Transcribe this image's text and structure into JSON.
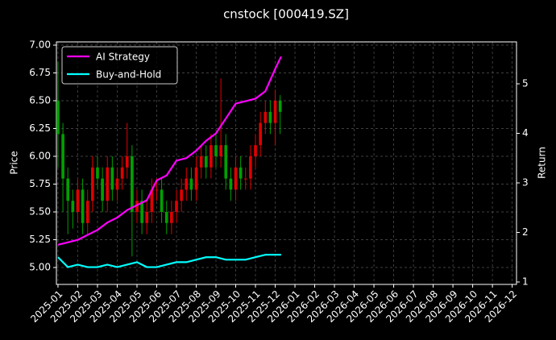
{
  "chart_data": {
    "type": "candlestick",
    "title": "cnstock [000419.SZ]",
    "ylabel": "Price",
    "y2label": "Return",
    "xlim": [
      -0.08,
      23.22
    ],
    "ylim": [
      4.848,
      7.029
    ],
    "y2lim": [
      0.951,
      5.846
    ],
    "xticks": [
      {
        "value": 0,
        "label": "2025-01"
      },
      {
        "value": 1,
        "label": "2025-02"
      },
      {
        "value": 2,
        "label": "2025-03"
      },
      {
        "value": 3,
        "label": "2025-04"
      },
      {
        "value": 4,
        "label": "2025-05"
      },
      {
        "value": 5,
        "label": "2025-06"
      },
      {
        "value": 6,
        "label": "2025-07"
      },
      {
        "value": 7,
        "label": "2025-08"
      },
      {
        "value": 8,
        "label": "2025-09"
      },
      {
        "value": 9,
        "label": "2025-10"
      },
      {
        "value": 10,
        "label": "2025-11"
      },
      {
        "value": 11,
        "label": "2025-12"
      },
      {
        "value": 12,
        "label": "2026-01"
      },
      {
        "value": 13,
        "label": "2026-02"
      },
      {
        "value": 14,
        "label": "2026-03"
      },
      {
        "value": 15,
        "label": "2026-04"
      },
      {
        "value": 16,
        "label": "2026-05"
      },
      {
        "value": 17,
        "label": "2026-06"
      },
      {
        "value": 18,
        "label": "2026-07"
      },
      {
        "value": 19,
        "label": "2026-08"
      },
      {
        "value": 20,
        "label": "2026-09"
      },
      {
        "value": 21,
        "label": "2026-10"
      },
      {
        "value": 22,
        "label": "2026-11"
      },
      {
        "value": 23,
        "label": "2026-12"
      }
    ],
    "yticks": [
      {
        "value": 5,
        "label": "5.00"
      },
      {
        "value": 5.25,
        "label": "5.25"
      },
      {
        "value": 5.5,
        "label": "5.50"
      },
      {
        "value": 5.75,
        "label": "5.75"
      },
      {
        "value": 6,
        "label": "6.00"
      },
      {
        "value": 6.25,
        "label": "6.25"
      },
      {
        "value": 6.5,
        "label": "6.50"
      },
      {
        "value": 6.75,
        "label": "6.75"
      },
      {
        "value": 7,
        "label": "7.00"
      }
    ],
    "y2ticks": [
      1,
      2,
      3,
      4,
      5
    ],
    "grid": true,
    "legend": "upper left",
    "candles": {
      "up_color": "#e00000",
      "down_color": "#00a000",
      "x": [
        0,
        0.25,
        0.5,
        0.75,
        1,
        1.25,
        1.5,
        1.75,
        2,
        2.25,
        2.5,
        2.75,
        3,
        3.25,
        3.5,
        3.75,
        4,
        4.25,
        4.5,
        4.75,
        5,
        5.25,
        5.5,
        5.75,
        6,
        6.25,
        6.5,
        6.75,
        7,
        7.25,
        7.5,
        7.75,
        8,
        8.25,
        8.5,
        8.75,
        9,
        9.25,
        9.5,
        9.75,
        10,
        10.25,
        10.5,
        10.75,
        11,
        11.25
      ],
      "open": [
        6.5,
        6.2,
        5.8,
        5.6,
        5.5,
        5.7,
        5.4,
        5.6,
        5.9,
        5.8,
        5.6,
        5.9,
        5.7,
        5.8,
        5.9,
        6.0,
        5.5,
        5.6,
        5.4,
        5.5,
        5.7,
        5.7,
        5.5,
        5.4,
        5.5,
        5.6,
        5.7,
        5.8,
        5.7,
        5.9,
        6.0,
        5.9,
        6.1,
        6.0,
        6.1,
        5.8,
        5.7,
        5.9,
        5.8,
        5.8,
        6.0,
        6.1,
        6.3,
        6.4,
        6.3,
        6.5
      ],
      "high": [
        6.85,
        6.3,
        5.9,
        5.7,
        5.8,
        5.8,
        5.7,
        6.0,
        6.0,
        5.9,
        6.0,
        6.0,
        5.9,
        6.0,
        6.3,
        6.1,
        5.7,
        5.7,
        5.6,
        5.8,
        5.8,
        5.8,
        5.6,
        5.6,
        5.7,
        5.8,
        5.9,
        5.9,
        6.0,
        6.1,
        6.1,
        6.2,
        6.2,
        6.7,
        6.2,
        5.9,
        6.0,
        6.0,
        5.9,
        6.1,
        6.2,
        6.4,
        6.5,
        6.5,
        6.6,
        6.55
      ],
      "low": [
        5.9,
        5.5,
        5.3,
        5.35,
        5.4,
        5.3,
        5.3,
        5.5,
        5.7,
        5.5,
        5.5,
        5.6,
        5.6,
        5.7,
        5.8,
        5.1,
        5.4,
        5.3,
        5.3,
        5.4,
        5.6,
        5.4,
        5.3,
        5.3,
        5.4,
        5.5,
        5.6,
        5.6,
        5.6,
        5.8,
        5.8,
        5.8,
        5.9,
        5.9,
        5.7,
        5.6,
        5.6,
        5.7,
        5.7,
        5.7,
        5.9,
        6.0,
        6.2,
        6.2,
        6.1,
        6.2
      ],
      "close": [
        6.2,
        5.8,
        5.6,
        5.5,
        5.7,
        5.4,
        5.6,
        5.9,
        5.8,
        5.6,
        5.9,
        5.7,
        5.8,
        5.9,
        6.0,
        5.5,
        5.6,
        5.4,
        5.5,
        5.7,
        5.7,
        5.5,
        5.4,
        5.5,
        5.6,
        5.7,
        5.8,
        5.7,
        5.9,
        6.0,
        5.9,
        6.1,
        6.0,
        6.1,
        5.8,
        5.7,
        5.9,
        5.8,
        5.8,
        6.0,
        6.1,
        6.3,
        6.4,
        6.3,
        6.5,
        6.4
      ]
    },
    "series": [
      {
        "name": "AI Strategy",
        "color": "#ff00ff",
        "axis": "y2",
        "x": [
          0,
          0.5,
          1,
          1.5,
          2,
          2.5,
          3,
          3.5,
          4,
          4.5,
          5,
          5.5,
          6,
          6.5,
          7,
          7.5,
          8,
          8.5,
          9,
          9.5,
          10,
          10.5,
          11,
          11.3
        ],
        "values": [
          1.75,
          1.8,
          1.85,
          1.95,
          2.05,
          2.2,
          2.3,
          2.45,
          2.55,
          2.65,
          3.05,
          3.15,
          3.45,
          3.5,
          3.65,
          3.85,
          4.0,
          4.3,
          4.6,
          4.65,
          4.7,
          4.85,
          5.3,
          5.55
        ]
      },
      {
        "name": "Buy-and-Hold",
        "color": "#00ffff",
        "axis": "y2",
        "x": [
          0,
          0.5,
          1,
          1.5,
          2,
          2.5,
          3,
          3.5,
          4,
          4.5,
          5,
          5.5,
          6,
          6.5,
          7,
          7.5,
          8,
          8.5,
          9,
          9.5,
          10,
          10.5,
          11,
          11.3
        ],
        "values": [
          1.5,
          1.3,
          1.35,
          1.3,
          1.3,
          1.35,
          1.3,
          1.35,
          1.4,
          1.3,
          1.3,
          1.35,
          1.4,
          1.4,
          1.45,
          1.5,
          1.5,
          1.45,
          1.45,
          1.45,
          1.5,
          1.55,
          1.55,
          1.55
        ]
      }
    ]
  }
}
